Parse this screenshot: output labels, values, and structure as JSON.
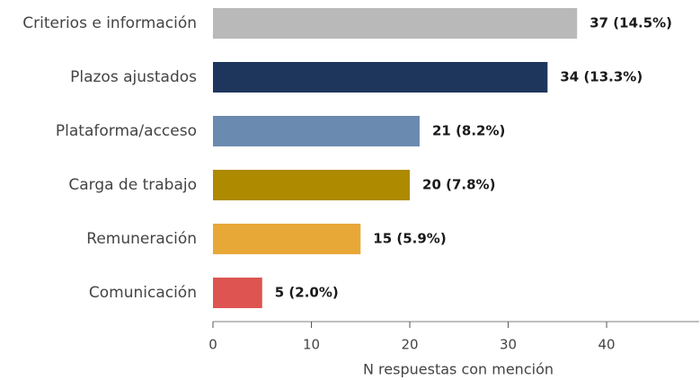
{
  "chart_data": {
    "type": "bar",
    "orientation": "horizontal",
    "categories": [
      "Criterios e información",
      "Plazos ajustados",
      "Plataforma/acceso",
      "Carga de trabajo",
      "Remuneración",
      "Comunicación"
    ],
    "values": [
      37,
      34,
      21,
      20,
      15,
      5
    ],
    "value_labels": [
      "37  (14.5%)",
      "34  (13.3%)",
      "21  (8.2%)",
      "20  (7.8%)",
      "15  (5.9%)",
      "5  (2.0%)"
    ],
    "colors": [
      "#b9b9b9",
      "#1f365c",
      "#6b8ab0",
      "#ad8a00",
      "#e8a838",
      "#dd5450"
    ],
    "xlabel": "N respuestas con mención",
    "xlim": [
      0,
      49.4
    ],
    "xticks": [
      0,
      10,
      20,
      30,
      40
    ]
  }
}
